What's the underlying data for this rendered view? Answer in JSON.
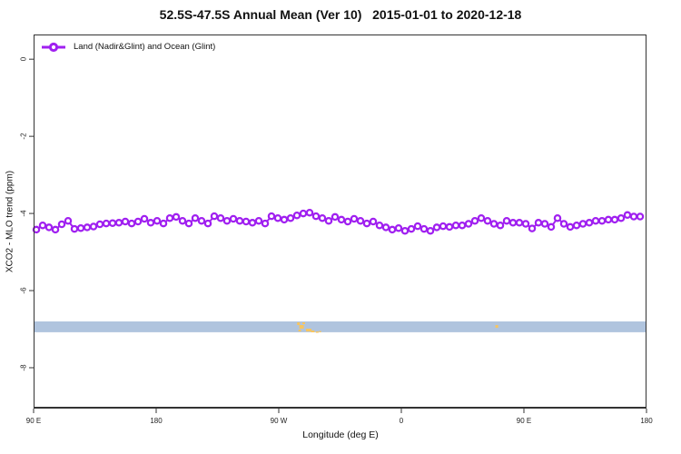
{
  "chart_data": {
    "type": "line",
    "title": "52.5S-47.5S Annual Mean (Ver 10)   2015-01-01 to 2020-12-18",
    "xlabel": "Longitude (deg E)",
    "ylabel": "XCO2 - MLO trend (ppm)",
    "x_tick_labels": [
      "90 E",
      "180",
      "90 W",
      "0",
      "90 E",
      "180"
    ],
    "y_ticks": [
      0,
      -2,
      -4,
      -6,
      -8
    ],
    "y_tick_labels": [
      "0",
      "-2",
      "-4",
      "-6",
      "-8"
    ],
    "ylim": [
      0.64,
      -9.06
    ],
    "x_axis_span_deg": 450,
    "x_deg_start": 2,
    "x_deg_step": 4.667,
    "grid": false,
    "legend_position": "top-left-inside",
    "axis_color": "#333333",
    "series": [
      {
        "name": "Land (Nadir&Glint) and Ocean (Glint)",
        "color": "#A020F0",
        "marker": "open-circle",
        "values": [
          -4.42,
          -4.31,
          -4.36,
          -4.42,
          -4.28,
          -4.19,
          -4.4,
          -4.38,
          -4.36,
          -4.34,
          -4.28,
          -4.26,
          -4.25,
          -4.24,
          -4.21,
          -4.26,
          -4.21,
          -4.14,
          -4.24,
          -4.19,
          -4.26,
          -4.12,
          -4.09,
          -4.19,
          -4.26,
          -4.12,
          -4.19,
          -4.26,
          -4.07,
          -4.12,
          -4.19,
          -4.14,
          -4.19,
          -4.21,
          -4.24,
          -4.19,
          -4.26,
          -4.07,
          -4.12,
          -4.16,
          -4.12,
          -4.05,
          -4.0,
          -3.98,
          -4.07,
          -4.12,
          -4.19,
          -4.09,
          -4.16,
          -4.21,
          -4.14,
          -4.19,
          -4.26,
          -4.21,
          -4.31,
          -4.36,
          -4.42,
          -4.38,
          -4.45,
          -4.4,
          -4.33,
          -4.4,
          -4.45,
          -4.36,
          -4.33,
          -4.35,
          -4.31,
          -4.31,
          -4.27,
          -4.19,
          -4.12,
          -4.19,
          -4.27,
          -4.31,
          -4.19,
          -4.24,
          -4.24,
          -4.27,
          -4.39,
          -4.24,
          -4.27,
          -4.35,
          -4.12,
          -4.27,
          -4.35,
          -4.31,
          -4.27,
          -4.24,
          -4.19,
          -4.19,
          -4.16,
          -4.16,
          -4.12,
          -4.04,
          -4.08,
          -4.08
        ]
      }
    ],
    "band": {
      "description": "latitude strip map: ocean shading",
      "color": "#B0C4DE",
      "y_top": -6.8,
      "y_bottom": -7.08
    },
    "land_marks": {
      "description": "land pixels in latitude strip (S. America ~75W, Kerguelen ~69E)",
      "color": "#F7C55F",
      "points": [
        {
          "frac": 0.43,
          "dy": 1,
          "w": 3,
          "h": 3
        },
        {
          "frac": 0.4335,
          "dy": 4,
          "w": 5,
          "h": 4
        },
        {
          "frac": 0.4385,
          "dy": 1,
          "w": 3,
          "h": 2
        },
        {
          "frac": 0.432,
          "dy": 9,
          "w": 3,
          "h": 2
        },
        {
          "frac": 0.4445,
          "dy": 8,
          "w": 6,
          "h": 3
        },
        {
          "frac": 0.4525,
          "dy": 10,
          "w": 4,
          "h": 2
        },
        {
          "frac": 0.4605,
          "dy": 11,
          "w": 3,
          "h": 1.5
        },
        {
          "frac": 0.466,
          "dy": 10.5,
          "w": 2,
          "h": 1.5
        },
        {
          "frac": 0.7535,
          "dy": 4,
          "w": 3,
          "h": 3
        }
      ]
    }
  }
}
